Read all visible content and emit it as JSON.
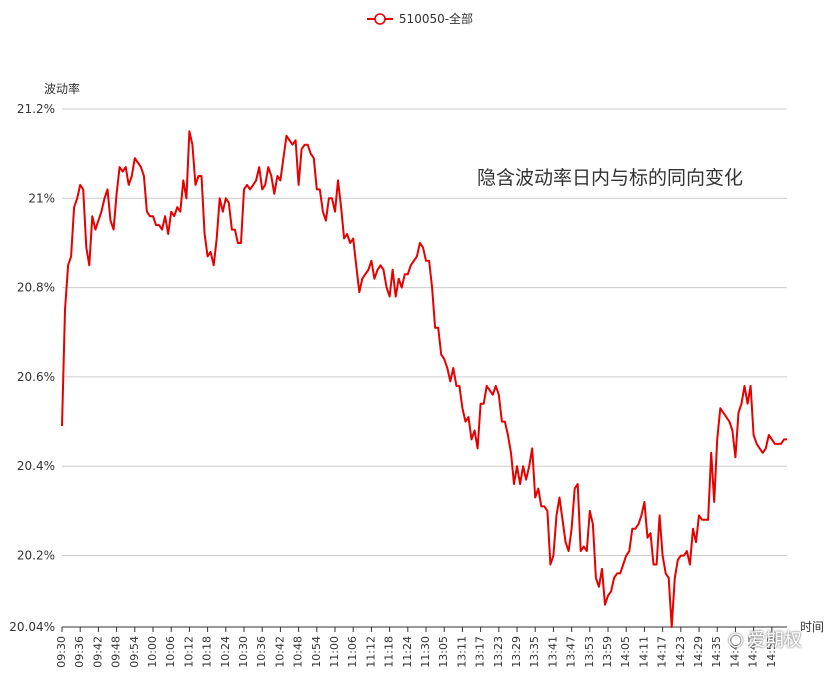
{
  "legend": {
    "label": "510050-全部"
  },
  "annotation": "隐含波动率日内与标的同向变化",
  "watermark": "爱期权",
  "colors": {
    "series": "#e60000",
    "grid": "#cccccc",
    "axis": "#333333"
  },
  "chart_data": {
    "type": "line",
    "ylabel": "波动率",
    "xlabel": "时间",
    "ylim": [
      20.04,
      21.2
    ],
    "y_ticks": [
      "20.04%",
      "20.2%",
      "20.4%",
      "20.6%",
      "20.8%",
      "21%",
      "21.2%"
    ],
    "y_tick_values": [
      20.04,
      20.2,
      20.4,
      20.6,
      20.8,
      21.0,
      21.2
    ],
    "x_tick_labels": [
      "09:30",
      "09:36",
      "09:42",
      "09:48",
      "09:54",
      "10:00",
      "10:06",
      "10:12",
      "10:18",
      "10:24",
      "10:30",
      "10:36",
      "10:42",
      "10:48",
      "10:54",
      "11:00",
      "11:06",
      "11:12",
      "11:18",
      "11:24",
      "11:30",
      "13:05",
      "13:11",
      "13:17",
      "13:23",
      "13:29",
      "13:35",
      "13:41",
      "13:47",
      "13:53",
      "13:59",
      "14:05",
      "14:11",
      "14:17",
      "14:23",
      "14:29",
      "14:35",
      "14:41",
      "14:47",
      "14:53"
    ],
    "series": [
      {
        "name": "510050-全部",
        "values": [
          20.49,
          20.75,
          20.85,
          20.87,
          20.98,
          21.0,
          21.03,
          21.02,
          20.89,
          20.85,
          20.96,
          20.93,
          20.95,
          20.97,
          21.0,
          21.02,
          20.95,
          20.93,
          21.01,
          21.07,
          21.06,
          21.07,
          21.03,
          21.05,
          21.09,
          21.08,
          21.07,
          21.05,
          20.97,
          20.96,
          20.96,
          20.94,
          20.94,
          20.93,
          20.96,
          20.92,
          20.97,
          20.96,
          20.98,
          20.97,
          21.04,
          21.0,
          21.15,
          21.12,
          21.03,
          21.05,
          21.05,
          20.92,
          20.87,
          20.88,
          20.85,
          20.91,
          21.0,
          20.97,
          21.0,
          20.99,
          20.93,
          20.93,
          20.9,
          20.9,
          21.02,
          21.03,
          21.02,
          21.03,
          21.04,
          21.07,
          21.02,
          21.03,
          21.07,
          21.05,
          21.01,
          21.05,
          21.04,
          21.09,
          21.14,
          21.13,
          21.12,
          21.13,
          21.03,
          21.11,
          21.12,
          21.12,
          21.1,
          21.09,
          21.02,
          21.02,
          20.97,
          20.95,
          21.0,
          21.0,
          20.97,
          21.04,
          20.98,
          20.91,
          20.92,
          20.9,
          20.91,
          20.85,
          20.79,
          20.82,
          20.83,
          20.84,
          20.86,
          20.82,
          20.84,
          20.85,
          20.84,
          20.8,
          20.78,
          20.84,
          20.78,
          20.82,
          20.8,
          20.83,
          20.83,
          20.85,
          20.86,
          20.87,
          20.9,
          20.89,
          20.86,
          20.86,
          20.8,
          20.71,
          20.71,
          20.65,
          20.64,
          20.62,
          20.59,
          20.62,
          20.58,
          20.58,
          20.53,
          20.5,
          20.51,
          20.46,
          20.48,
          20.44,
          20.54,
          20.54,
          20.58,
          20.57,
          20.56,
          20.58,
          20.56,
          20.5,
          20.5,
          20.47,
          20.43,
          20.36,
          20.4,
          20.36,
          20.4,
          20.37,
          20.4,
          20.44,
          20.33,
          20.35,
          20.31,
          20.31,
          20.3,
          20.18,
          20.2,
          20.29,
          20.33,
          20.28,
          20.23,
          20.21,
          20.26,
          20.35,
          20.36,
          20.21,
          20.22,
          20.21,
          20.3,
          20.27,
          20.15,
          20.13,
          20.17,
          20.09,
          20.11,
          20.12,
          20.15,
          20.16,
          20.16,
          20.18,
          20.2,
          20.21,
          20.26,
          20.26,
          20.27,
          20.29,
          20.32,
          20.24,
          20.25,
          20.18,
          20.18,
          20.29,
          20.2,
          20.16,
          20.15,
          20.04,
          20.15,
          20.19,
          20.2,
          20.2,
          20.21,
          20.18,
          20.26,
          20.23,
          20.29,
          20.28,
          20.28,
          20.28,
          20.43,
          20.32,
          20.46,
          20.53,
          20.52,
          20.51,
          20.5,
          20.48,
          20.42,
          20.52,
          20.54,
          20.58,
          20.54,
          20.58,
          20.47,
          20.45,
          20.44,
          20.43,
          20.44,
          20.47,
          20.46,
          20.45,
          20.45,
          20.45,
          20.46,
          20.46
        ]
      }
    ]
  }
}
